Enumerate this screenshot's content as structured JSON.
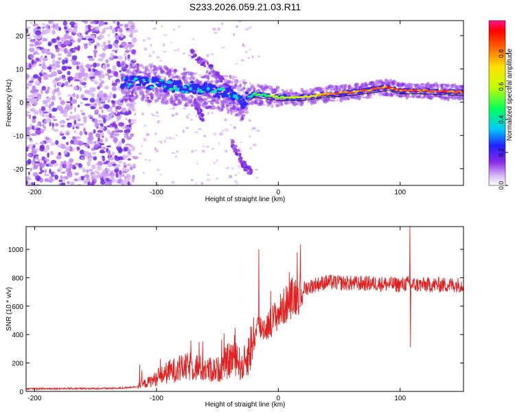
{
  "title": "S233.2026.059.21.03.R11",
  "chart_data": [
    {
      "type": "heatmap",
      "name": "spectrogram",
      "xlabel": "Height of straight line (km)",
      "ylabel": "Frequency (Hz)",
      "xlim": [
        -207,
        152
      ],
      "ylim": [
        -25,
        24.5
      ],
      "xticks": [
        -200,
        -100,
        0,
        100
      ],
      "yticks": [
        -20,
        -10,
        0,
        10,
        20
      ],
      "colorbar": {
        "label": "Normalized spectral amplitude",
        "range": [
          0,
          1
        ],
        "ticks": [
          "0.0",
          "0.2",
          "0.4",
          "0.6",
          "0.8"
        ],
        "tick_values": [
          0.0,
          0.2,
          0.4,
          0.6,
          0.8
        ]
      },
      "dominant_line": {
        "x": [
          -125,
          -100,
          -80,
          -60,
          -40,
          -30,
          -20,
          -10,
          0,
          20,
          40,
          60,
          80,
          90,
          100,
          120,
          152
        ],
        "y": [
          6,
          5.5,
          4.5,
          4,
          2.5,
          0,
          2.5,
          2,
          1.5,
          1.5,
          2.5,
          3,
          4,
          4.5,
          3.5,
          3.5,
          3
        ],
        "amplitude": [
          0.4,
          0.4,
          0.35,
          0.35,
          0.3,
          0.3,
          0.5,
          0.55,
          0.6,
          0.7,
          0.85,
          0.85,
          0.9,
          0.9,
          0.9,
          0.95,
          0.95
        ]
      },
      "branches": [
        {
          "x": [
            -72,
            -55,
            -40
          ],
          "y": [
            15,
            10,
            4
          ]
        },
        {
          "x": [
            -68,
            -62
          ],
          "y": [
            0,
            -5
          ]
        },
        {
          "x": [
            -38,
            -28,
            -22
          ],
          "y": [
            -12,
            -19,
            -21
          ]
        }
      ],
      "noise_region": {
        "x": [
          -207,
          -125
        ],
        "amplitude": 0.15
      }
    },
    {
      "type": "line",
      "name": "snr",
      "xlabel": "Height of straight line (km)",
      "ylabel": "SNR (10 * v/v)",
      "xlim": [
        -207,
        152
      ],
      "ylim": [
        0,
        1160
      ],
      "xticks": [
        -200,
        -100,
        0,
        100
      ],
      "yticks": [
        0,
        200,
        400,
        600,
        800,
        1000
      ],
      "color": "#e02020",
      "x": [
        -207,
        -180,
        -150,
        -130,
        -115,
        -100,
        -90,
        -80,
        -70,
        -60,
        -50,
        -40,
        -35,
        -30,
        -20,
        -17,
        -10,
        0,
        10,
        20,
        30,
        40,
        60,
        80,
        100,
        107,
        110,
        130,
        152
      ],
      "y": [
        18,
        20,
        20,
        22,
        35,
        90,
        140,
        160,
        180,
        150,
        150,
        220,
        260,
        160,
        360,
        450,
        450,
        550,
        650,
        720,
        750,
        770,
        760,
        760,
        750,
        760,
        750,
        750,
        750
      ],
      "spikes": [
        {
          "x": -16,
          "y": 1000
        },
        {
          "x": 108,
          "y": 1160
        },
        {
          "x": 108.5,
          "y": 310
        }
      ]
    }
  ]
}
